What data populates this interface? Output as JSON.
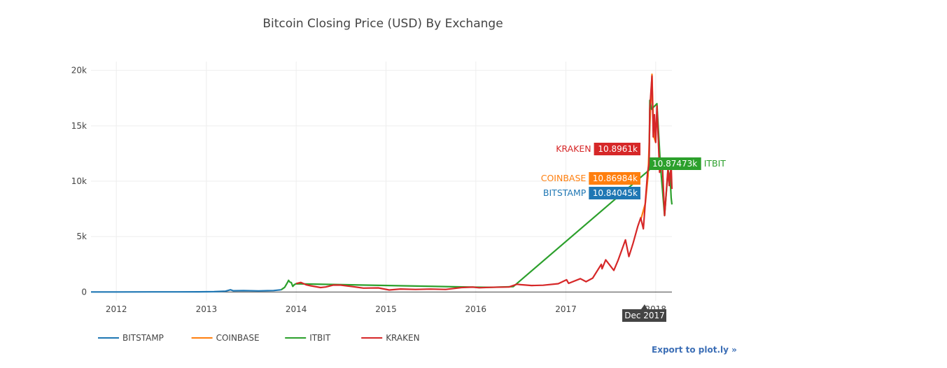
{
  "chart_data": {
    "type": "line",
    "title": "Bitcoin Closing Price (USD) By Exchange",
    "x_ticks": [
      "2012",
      "2013",
      "2014",
      "2015",
      "2016",
      "2017",
      "2018"
    ],
    "y_ticks": [
      "0",
      "5k",
      "10k",
      "15k",
      "20k"
    ],
    "y_tick_values": [
      0,
      5000,
      10000,
      15000,
      20000
    ],
    "xlim": [
      "2011-09-20",
      "2018-03-08"
    ],
    "ylim": [
      -800,
      20800
    ],
    "grid": true,
    "legend_position": "bottom",
    "series": [
      {
        "name": "BITSTAMP",
        "color": "#1f77b4",
        "points": [
          [
            "2011-09-20",
            5
          ],
          [
            "2012-01-01",
            5
          ],
          [
            "2012-06-01",
            6
          ],
          [
            "2012-09-01",
            10
          ],
          [
            "2012-12-01",
            13
          ],
          [
            "2013-02-01",
            25
          ],
          [
            "2013-03-20",
            70
          ],
          [
            "2013-04-09",
            200
          ],
          [
            "2013-04-20",
            110
          ],
          [
            "2013-06-01",
            120
          ],
          [
            "2013-08-01",
            100
          ],
          [
            "2013-10-01",
            130
          ],
          [
            "2013-11-01",
            200
          ]
        ]
      },
      {
        "name": "COINBASE",
        "color": "#ff7f0e",
        "points": [
          [
            "2017-11-01",
            6500
          ],
          [
            "2017-11-20",
            8000
          ],
          [
            "2017-12-01",
            10500
          ],
          [
            "2017-12-08",
            15000
          ],
          [
            "2017-12-17",
            19650
          ],
          [
            "2017-12-20",
            17000
          ],
          [
            "2017-12-25",
            14000
          ],
          [
            "2018-01-01",
            13500
          ]
        ]
      },
      {
        "name": "ITBIT",
        "color": "#2ca02c",
        "points": [
          [
            "2013-11-01",
            200
          ],
          [
            "2013-11-15",
            420
          ],
          [
            "2013-11-25",
            800
          ],
          [
            "2013-12-01",
            1050
          ],
          [
            "2013-12-06",
            900
          ],
          [
            "2013-12-12",
            850
          ],
          [
            "2013-12-18",
            500
          ],
          [
            "2013-12-24",
            650
          ],
          [
            "2013-12-31",
            740
          ],
          [
            "2016-01-05",
            430
          ],
          [
            "2016-03-01",
            420
          ],
          [
            "2016-06-01",
            480
          ],
          [
            "2017-12-05",
            11000
          ],
          [
            "2017-12-08",
            17300
          ],
          [
            "2017-12-15",
            16500
          ],
          [
            "2018-01-06",
            17000
          ],
          [
            "2018-01-20",
            11500
          ],
          [
            "2018-02-06",
            6900
          ],
          [
            "2018-02-20",
            11000
          ],
          [
            "2018-03-01",
            10300
          ],
          [
            "2018-03-05",
            8500
          ],
          [
            "2018-03-08",
            7900
          ]
        ]
      },
      {
        "name": "KRAKEN",
        "color": "#d62728",
        "points": [
          [
            "2014-01-01",
            760
          ],
          [
            "2014-01-20",
            860
          ],
          [
            "2014-02-10",
            650
          ],
          [
            "2014-03-01",
            560
          ],
          [
            "2014-04-10",
            400
          ],
          [
            "2014-05-01",
            450
          ],
          [
            "2014-06-01",
            630
          ],
          [
            "2014-07-01",
            620
          ],
          [
            "2014-08-18",
            480
          ],
          [
            "2014-10-01",
            350
          ],
          [
            "2014-12-01",
            370
          ],
          [
            "2015-01-14",
            180
          ],
          [
            "2015-03-01",
            270
          ],
          [
            "2015-05-01",
            230
          ],
          [
            "2015-07-01",
            260
          ],
          [
            "2015-09-01",
            230
          ],
          [
            "2015-11-04",
            400
          ],
          [
            "2015-12-20",
            440
          ],
          [
            "2016-01-15",
            380
          ],
          [
            "2016-03-01",
            420
          ],
          [
            "2016-05-15",
            450
          ],
          [
            "2016-06-16",
            700
          ],
          [
            "2016-07-01",
            660
          ],
          [
            "2016-08-15",
            580
          ],
          [
            "2016-10-01",
            610
          ],
          [
            "2016-12-01",
            750
          ],
          [
            "2017-01-04",
            1100
          ],
          [
            "2017-01-12",
            780
          ],
          [
            "2017-03-01",
            1200
          ],
          [
            "2017-03-24",
            930
          ],
          [
            "2017-04-20",
            1250
          ],
          [
            "2017-05-25",
            2500
          ],
          [
            "2017-05-28",
            2100
          ],
          [
            "2017-06-12",
            2900
          ],
          [
            "2017-07-15",
            1950
          ],
          [
            "2017-08-01",
            2850
          ],
          [
            "2017-08-31",
            4700
          ],
          [
            "2017-09-14",
            3200
          ],
          [
            "2017-10-01",
            4400
          ],
          [
            "2017-10-20",
            5900
          ],
          [
            "2017-11-01",
            6700
          ],
          [
            "2017-11-12",
            5700
          ],
          [
            "2017-11-20",
            8100
          ],
          [
            "2017-11-29",
            10800
          ],
          [
            "2017-12-05",
            11600
          ],
          [
            "2017-12-08",
            16500
          ],
          [
            "2017-12-17",
            19500
          ],
          [
            "2017-12-22",
            14000
          ],
          [
            "2017-12-27",
            16000
          ],
          [
            "2018-01-01",
            13500
          ],
          [
            "2018-01-06",
            16800
          ],
          [
            "2018-01-17",
            10800
          ],
          [
            "2018-01-28",
            11600
          ],
          [
            "2018-02-06",
            6900
          ],
          [
            "2018-02-20",
            11200
          ],
          [
            "2018-02-25",
            9600
          ],
          [
            "2018-03-05",
            11400
          ],
          [
            "2018-03-08",
            9300
          ]
        ]
      }
    ],
    "hover": {
      "x_label": "Dec 2017",
      "items": [
        {
          "name": "KRAKEN",
          "value": "10.8961k",
          "color": "#d62728"
        },
        {
          "name": "ITBIT",
          "value": "10.87473k",
          "color": "#2ca02c"
        },
        {
          "name": "COINBASE",
          "value": "10.86984k",
          "color": "#ff7f0e"
        },
        {
          "name": "BITSTAMP",
          "value": "10.84045k",
          "color": "#1f77b4"
        }
      ]
    }
  },
  "export_link": "Export to plot.ly »"
}
